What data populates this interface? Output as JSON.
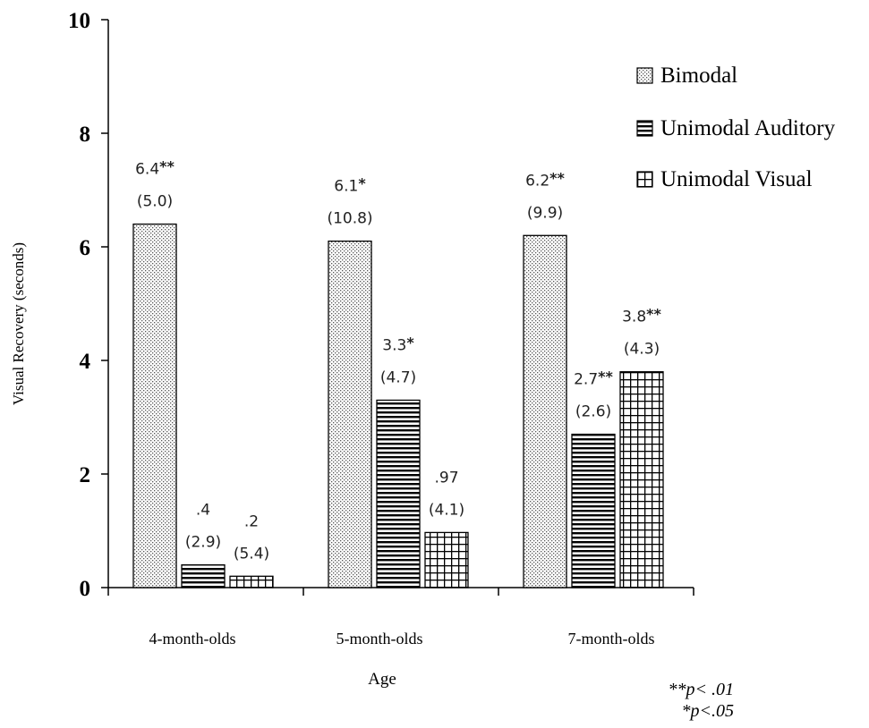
{
  "chart_data": {
    "type": "bar",
    "ylabel": "Visual Recovery (seconds)",
    "xlabel": "Age",
    "ylim": [
      0,
      10
    ],
    "yticks": [
      "0",
      "2",
      "4",
      "6",
      "8",
      "10"
    ],
    "categories": [
      "4-month-olds",
      "5-month-olds",
      "7-month-olds"
    ],
    "legend_position": "top-right",
    "series": [
      {
        "name": "Bimodal",
        "pattern": "dots",
        "values": [
          6.4,
          6.1,
          6.2
        ],
        "value_labels": [
          "6.4",
          "6.1",
          "6.2"
        ],
        "significance": [
          "**",
          "*",
          "**"
        ],
        "sd_labels": [
          "(5.0)",
          "(10.8)",
          "(9.9)"
        ]
      },
      {
        "name": "Unimodal Auditory",
        "pattern": "horizontal-lines",
        "values": [
          0.4,
          3.3,
          2.7
        ],
        "value_labels": [
          ".4",
          "3.3",
          "2.7"
        ],
        "significance": [
          "",
          "*",
          "**"
        ],
        "sd_labels": [
          "(2.9)",
          "(4.7)",
          "(2.6)"
        ]
      },
      {
        "name": "Unimodal Visual",
        "pattern": "grid",
        "values": [
          0.2,
          0.97,
          3.8
        ],
        "value_labels": [
          ".2",
          ".97",
          "3.8"
        ],
        "significance": [
          "",
          "",
          "**"
        ],
        "sd_labels": [
          "(5.4)",
          "(4.1)",
          "(4.3)"
        ]
      }
    ],
    "notes": [
      "**p< .01",
      "*p<.05"
    ]
  }
}
